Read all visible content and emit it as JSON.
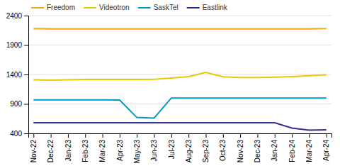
{
  "chart_data": {
    "type": "line",
    "categories": [
      "Nov-22",
      "Dec-22",
      "Jan-23",
      "Feb-23",
      "Mar-23",
      "Apr-23",
      "May-23",
      "Jun-23",
      "Jul-23",
      "Aug-23",
      "Sep-23",
      "Oct-23",
      "Nov-23",
      "Dec-23",
      "Jan-24",
      "Feb-24",
      "Mar-24",
      "Apr-24"
    ],
    "series": [
      {
        "name": "Freedom",
        "color": "#F5A623",
        "values": [
          2180,
          2175,
          2175,
          2175,
          2175,
          2175,
          2175,
          2175,
          2175,
          2175,
          2175,
          2175,
          2175,
          2175,
          2175,
          2175,
          2175,
          2180
        ]
      },
      {
        "name": "Videotron",
        "color": "#E8C800",
        "values": [
          1310,
          1305,
          1310,
          1315,
          1315,
          1315,
          1315,
          1320,
          1340,
          1365,
          1435,
          1360,
          1350,
          1350,
          1355,
          1365,
          1380,
          1395
        ]
      },
      {
        "name": "SaskTel",
        "color": "#0099CC",
        "values": [
          970,
          970,
          970,
          970,
          970,
          965,
          670,
          660,
          1000,
          1000,
          1000,
          1000,
          1000,
          1000,
          1000,
          1000,
          1000,
          1000
        ]
      },
      {
        "name": "Eastlink",
        "color": "#2E3192",
        "values": [
          580,
          580,
          580,
          580,
          580,
          580,
          580,
          580,
          580,
          580,
          580,
          580,
          580,
          580,
          580,
          490,
          455,
          460
        ]
      }
    ],
    "ylim": [
      400,
      2400
    ],
    "yticks": [
      400,
      900,
      1400,
      1900,
      2400
    ],
    "grid": true,
    "legend": "upper left"
  }
}
